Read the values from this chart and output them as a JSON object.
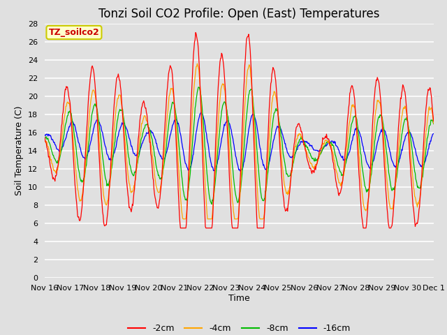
{
  "title": "Tonzi Soil CO2 Profile: Open (East) Temperatures",
  "xlabel": "Time",
  "ylabel": "Soil Temperature (C)",
  "ylim": [
    0,
    28
  ],
  "yticks": [
    0,
    2,
    4,
    6,
    8,
    10,
    12,
    14,
    16,
    18,
    20,
    22,
    24,
    26,
    28
  ],
  "background_color": "#e0e0e0",
  "plot_bg_color": "#e0e0e0",
  "line_colors": {
    "-2cm": "#ff0000",
    "-4cm": "#ffa500",
    "-8cm": "#00bb00",
    "-16cm": "#0000ff"
  },
  "legend_labels": [
    "-2cm",
    "-4cm",
    "-8cm",
    "-16cm"
  ],
  "annotation_text": "TZ_soilco2",
  "annotation_color": "#cc0000",
  "annotation_bg": "#ffffcc",
  "annotation_border": "#cccc00",
  "xtick_labels": [
    "Nov 16",
    "Nov 17",
    "Nov 18",
    "Nov 19",
    "Nov 20",
    "Nov 21",
    "Nov 22",
    "Nov 23",
    "Nov 24",
    "Nov 25",
    "Nov 26",
    "Nov 27",
    "Nov 28",
    "Nov 29",
    "Nov 30",
    "Dec 1"
  ],
  "title_fontsize": 12,
  "axis_fontsize": 9,
  "tick_fontsize": 8
}
